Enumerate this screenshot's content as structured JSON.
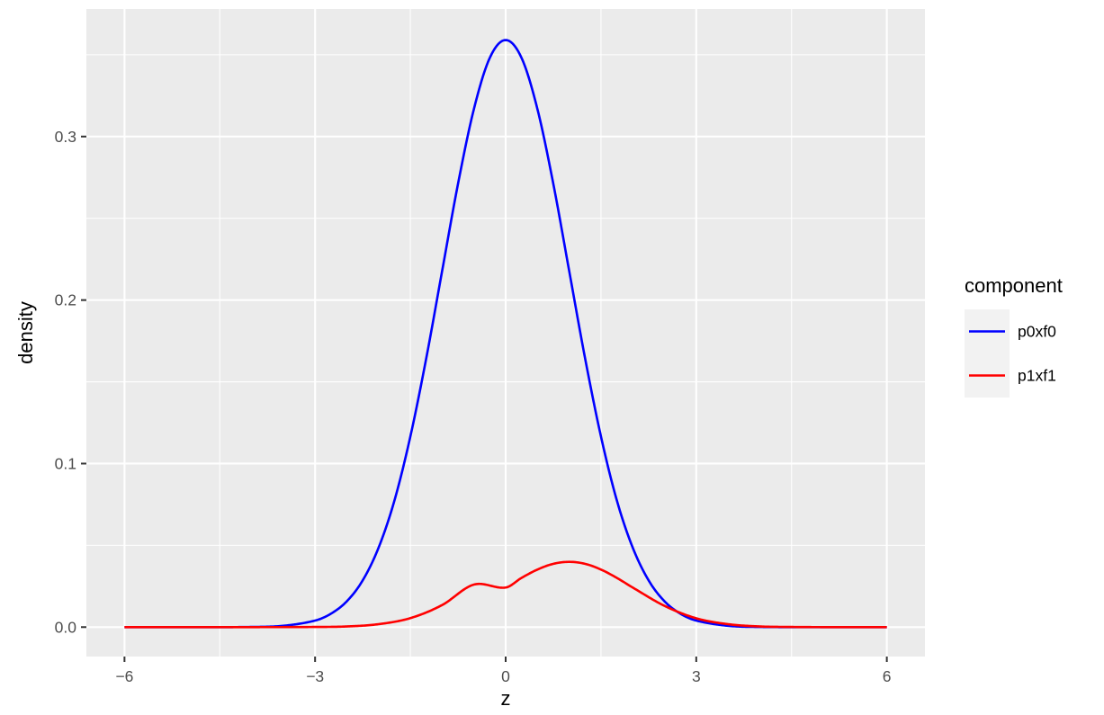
{
  "chart_data": {
    "type": "line",
    "xlabel": "z",
    "ylabel": "density",
    "xlim": [
      -6.6,
      6.6
    ],
    "ylim": [
      -0.018,
      0.378
    ],
    "x_ticks": [
      -6,
      -3,
      0,
      3,
      6
    ],
    "x_tick_labels": [
      "-6",
      "-3",
      "0",
      "3",
      "6"
    ],
    "x_minor": [
      -4.5,
      -1.5,
      1.5,
      4.5
    ],
    "y_ticks": [
      0.0,
      0.1,
      0.2,
      0.3
    ],
    "y_tick_labels": [
      "0.0",
      "0.1",
      "0.2",
      "0.3"
    ],
    "y_minor": [
      0.05,
      0.15,
      0.25,
      0.35
    ],
    "grid": true,
    "legend": {
      "title": "component",
      "position": "right"
    },
    "series": [
      {
        "name": "p0xf0",
        "color": "#0000ff",
        "x": [
          -6,
          -5,
          -4,
          -3.5,
          -3,
          -2.75,
          -2.5,
          -2.25,
          -2,
          -1.75,
          -1.5,
          -1.25,
          -1,
          -0.75,
          -0.5,
          -0.25,
          0,
          0.25,
          0.5,
          0.75,
          1,
          1.25,
          1.5,
          1.75,
          2,
          2.25,
          2.5,
          2.75,
          3,
          3.5,
          4,
          5,
          6
        ],
        "y": [
          0.0,
          0.0,
          0.0001,
          0.0008,
          0.004,
          0.0082,
          0.0158,
          0.0286,
          0.0486,
          0.0775,
          0.1166,
          0.1644,
          0.2178,
          0.2711,
          0.3168,
          0.3481,
          0.359,
          0.3481,
          0.3168,
          0.2711,
          0.2178,
          0.1644,
          0.1166,
          0.0775,
          0.0486,
          0.0286,
          0.0158,
          0.0082,
          0.004,
          0.0008,
          0.0001,
          0.0,
          0.0
        ]
      },
      {
        "name": "p1xf1",
        "color": "#ff0000",
        "x": [
          -6,
          -4,
          -3,
          -2.5,
          -2,
          -1.5,
          -1,
          -0.5,
          0,
          0.25,
          0.5,
          0.75,
          1,
          1.25,
          1.5,
          1.75,
          2,
          2.5,
          3,
          3.5,
          4,
          4.5,
          5,
          6
        ],
        "y": [
          0.0,
          0.0,
          0.0001,
          0.0004,
          0.0018,
          0.0055,
          0.0135,
          0.026,
          0.0242,
          0.0301,
          0.0352,
          0.0387,
          0.0399,
          0.0387,
          0.0352,
          0.0301,
          0.0242,
          0.013,
          0.0054,
          0.0018,
          0.0004,
          0.0001,
          0.0,
          0.0
        ]
      }
    ]
  }
}
